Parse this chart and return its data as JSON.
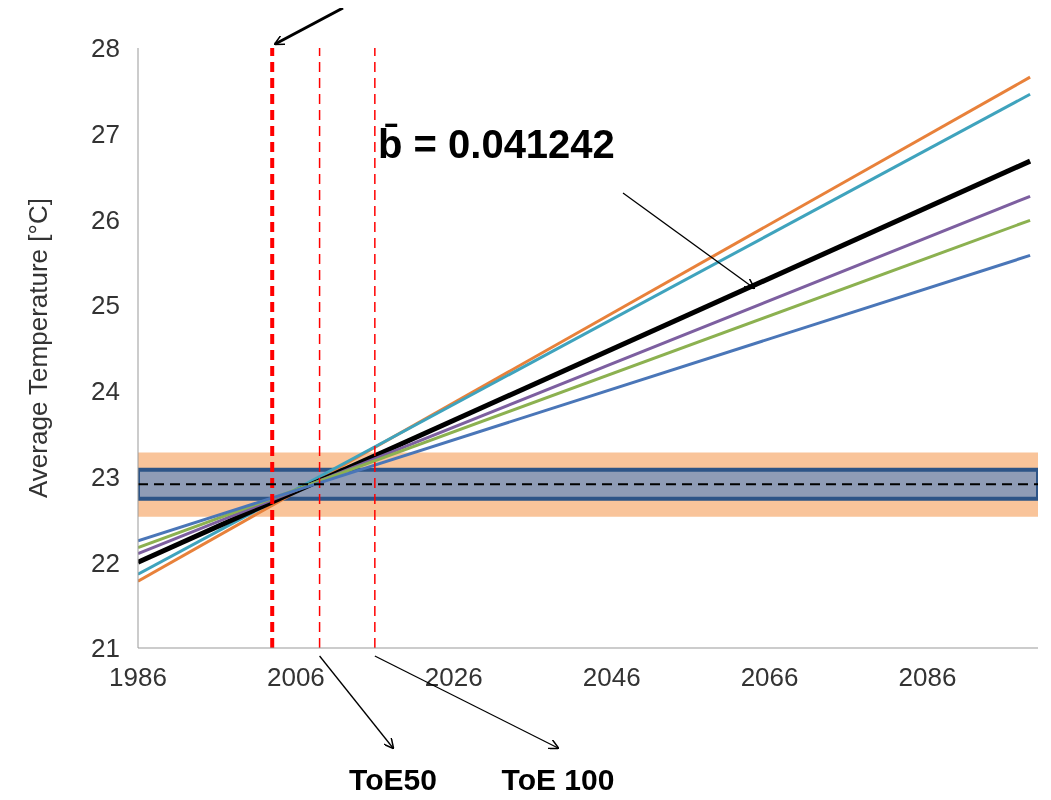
{
  "chart_data": {
    "type": "line",
    "ylabel": "Average Temperature [°C]",
    "x": [
      1986,
      2099
    ],
    "series": [
      {
        "color": "#e8813a",
        "values": [
          21.78,
          27.66
        ]
      },
      {
        "color": "#3fa3bd",
        "values": [
          21.86,
          27.46
        ]
      },
      {
        "color": "#000000",
        "values": [
          22.0,
          26.68
        ]
      },
      {
        "color": "#7d5fa0",
        "values": [
          22.1,
          26.27
        ]
      },
      {
        "color": "#8cb150",
        "values": [
          22.17,
          25.99
        ]
      },
      {
        "color": "#4a76b8",
        "values": [
          22.25,
          25.58
        ]
      }
    ],
    "xlim": [
      1986,
      2100
    ],
    "xticks": [
      1986,
      2006,
      2026,
      2046,
      2066,
      2086
    ],
    "ylim": [
      21,
      28
    ],
    "yticks": [
      21,
      22,
      23,
      24,
      25,
      26,
      27,
      28
    ],
    "bands": [
      {
        "axis": "y",
        "from": 22.53,
        "to": 23.28,
        "color": "#f9c49a"
      },
      {
        "axis": "y",
        "from": 22.74,
        "to": 23.08,
        "color": "#8f9cb6"
      }
    ],
    "ref_lines": [
      {
        "axis": "x",
        "value": 2003,
        "color": "#ff0000",
        "line_style": "dashed"
      },
      {
        "axis": "x",
        "value": 2009,
        "color": "#ff0000",
        "line_style": "dashed",
        "label": "ToE50"
      },
      {
        "axis": "x",
        "value": 2016,
        "color": "#ff0000",
        "line_style": "dashed",
        "label": "ToE 100"
      },
      {
        "axis": "y",
        "value": 22.91,
        "color": "#000000",
        "line_style": "dashed"
      }
    ],
    "annotations": [
      {
        "text": "b̄ =  0.041242",
        "x": 2064,
        "y": 25.2
      }
    ],
    "grid": false,
    "legend": false,
    "marker": "none",
    "line_style": "solid"
  }
}
